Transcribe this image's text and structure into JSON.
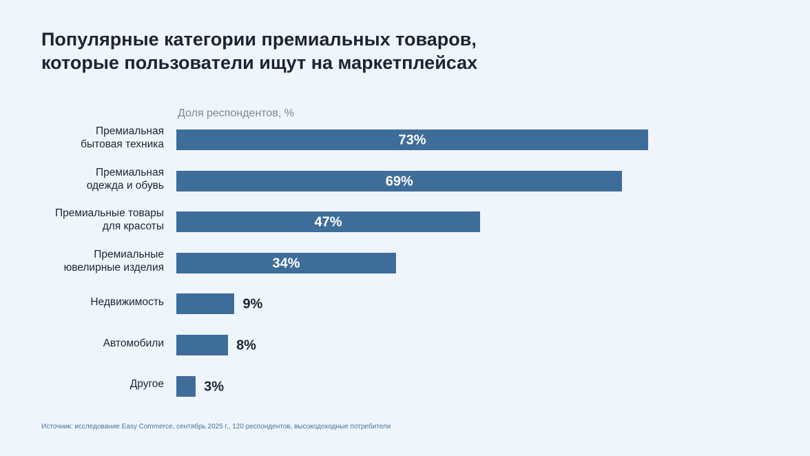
{
  "chart_data": {
    "type": "bar",
    "orientation": "horizontal",
    "title": "Популярные категории премиальных товаров,\nкоторые пользователи ищут на маркетплейсах",
    "title_lines": [
      "Популярные категории премиальных товаров,",
      "которые пользователи ищут на маркетплейсах"
    ],
    "xlabel": "Доля респондентов, %",
    "categories": [
      [
        "Премиальная",
        "бытовая техника"
      ],
      [
        "Премиальная",
        "одежда и обувь"
      ],
      [
        "Премиальные товары",
        "для красоты"
      ],
      [
        "Премиальные",
        "ювелирные изделия"
      ],
      [
        "Недвижимость"
      ],
      [
        "Автомобили"
      ],
      [
        "Другое"
      ]
    ],
    "values": [
      73,
      69,
      47,
      34,
      9,
      8,
      3
    ],
    "labels": [
      "73%",
      "69%",
      "47%",
      "34%",
      "9%",
      "8%",
      "3%"
    ],
    "xlim": [
      0,
      73
    ],
    "grid": false,
    "bar_color": "#3f6d9a"
  },
  "source": "Источник: исследование Easy Commerce, сентябрь 2025 г., 120 респондентов, высокодоходные потребители"
}
